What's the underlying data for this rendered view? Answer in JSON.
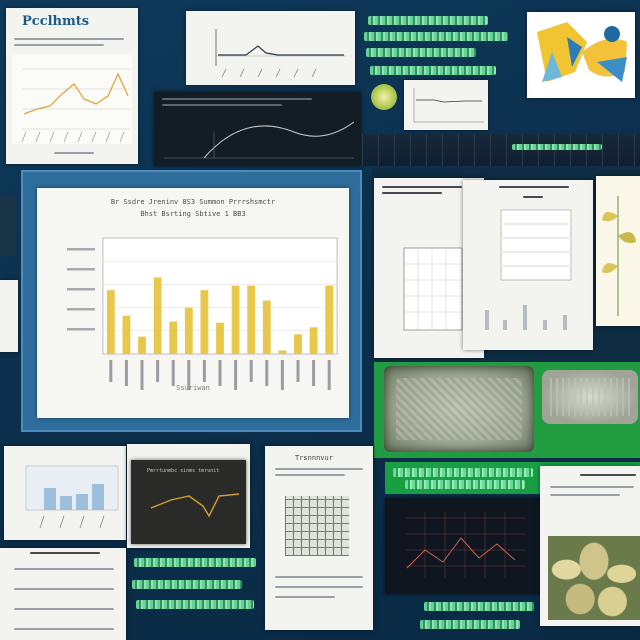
{
  "top_left_card": {
    "heading": "Pcclhmts"
  },
  "colors": {
    "background": "#0f3a5c",
    "paper": "#f3f3ef",
    "bar": "#e8c84a",
    "line_orange": "#e0a540",
    "neon_green": "#49e07f",
    "dark_panel": "#0e1b25"
  },
  "main_chart": {
    "title_line1": "Br Ssdre Jreninv 8S3 Summon Prrrshsmctr",
    "title_line2": "Bhst Bsrting Sbtive 1 BB3",
    "footer_label": "Ssuriwan",
    "chart_data": {
      "type": "bar",
      "values": [
        55,
        33,
        15,
        66,
        28,
        40,
        55,
        27,
        59,
        59,
        46,
        3,
        17,
        23,
        59
      ],
      "ylim": [
        0,
        100
      ],
      "grid": true
    }
  },
  "center_bottom_doc": {
    "title": "Trsnnnvur"
  },
  "dark_line_card": {
    "title": "Pmrrtunmbc sinms tmrunit"
  }
}
